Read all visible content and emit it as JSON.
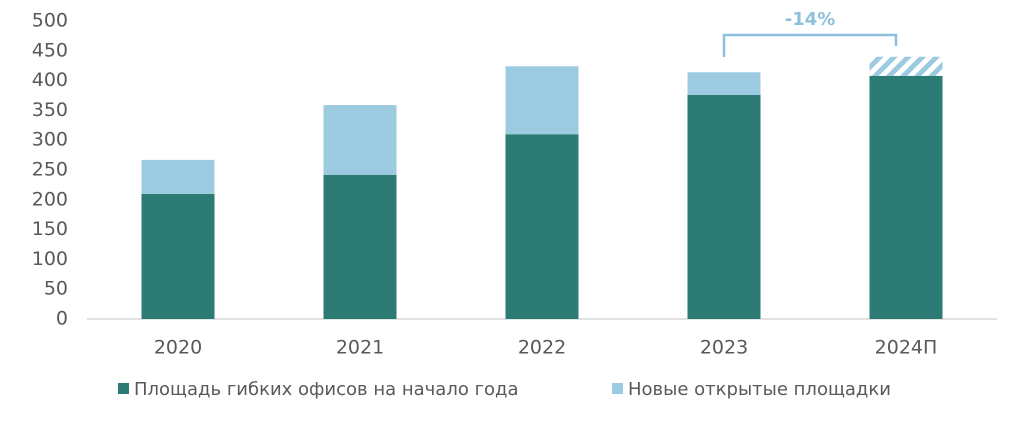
{
  "chart_data": {
    "type": "stacked-bar",
    "categories": [
      "2020",
      "2021",
      "2022",
      "2023",
      "2024П"
    ],
    "series": [
      {
        "name": "Площадь гибких офисов на начало года",
        "color": "#2b7a73",
        "values": [
          210,
          242,
          310,
          376,
          408
        ]
      },
      {
        "name": "Новые открытые площадки",
        "color": "#9ccae0",
        "values": [
          57,
          117,
          114,
          38,
          32
        ],
        "hatched": [
          false,
          false,
          false,
          false,
          true
        ]
      }
    ],
    "ylim": [
      0,
      500
    ],
    "yticks": [
      0,
      50,
      100,
      150,
      200,
      250,
      300,
      350,
      400,
      450,
      500
    ],
    "grid": false,
    "legend": "bottom",
    "annotation": "-14%",
    "annotation_color": "#8ec0dc"
  }
}
